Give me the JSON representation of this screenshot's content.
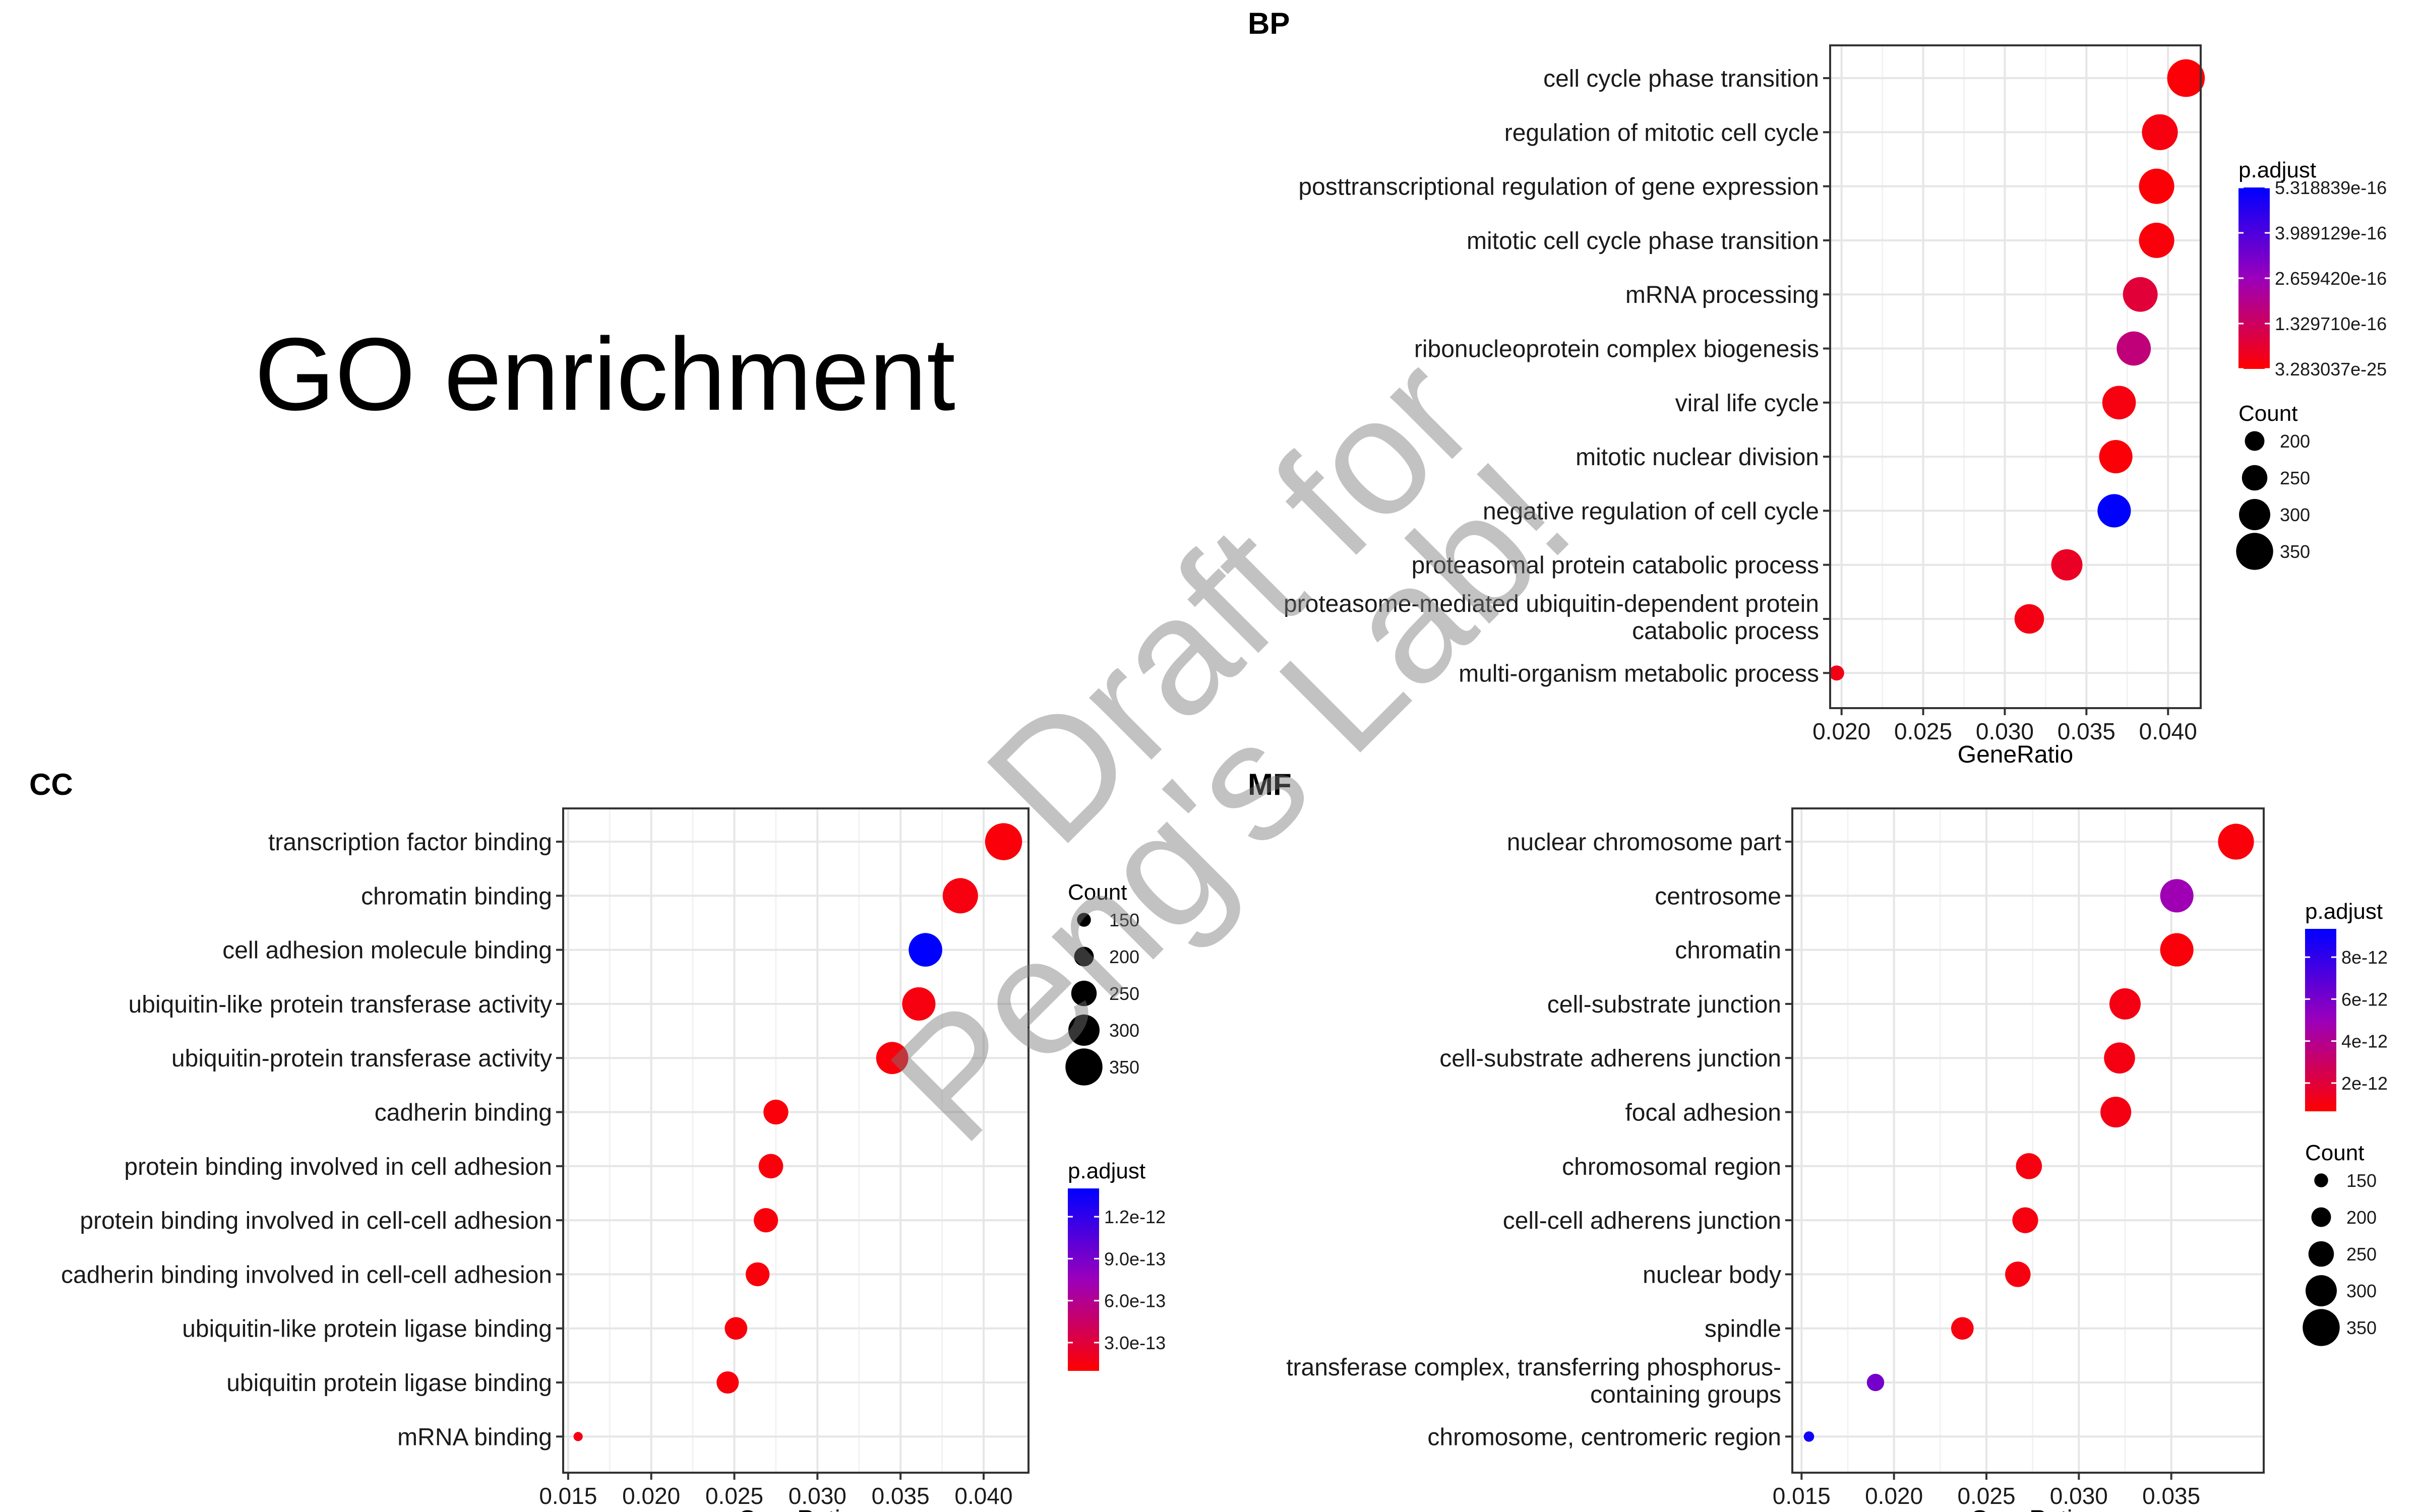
{
  "figure_title": "GO enrichment",
  "watermark": {
    "line1": "Draft for",
    "line2": "Peng's Lab!"
  },
  "colors": {
    "low": "#ff0000",
    "mid": "#9b00bb",
    "high": "#0000ff"
  },
  "chart_data": [
    {
      "type": "scatter",
      "panel": "BP",
      "xlabel": "GeneRatio",
      "ylabel": "",
      "xlim": [
        0.0193,
        0.042
      ],
      "xticks": [
        0.02,
        0.025,
        0.03,
        0.035,
        0.04
      ],
      "xtick_labels": [
        "0.020",
        "0.025",
        "0.030",
        "0.035",
        "0.040"
      ],
      "terms": [
        {
          "label": [
            "cell cycle phase transition"
          ],
          "x": 0.0411,
          "count": 355,
          "p_frac": 0.02
        },
        {
          "label": [
            "regulation of mitotic cell cycle"
          ],
          "x": 0.0395,
          "count": 340,
          "p_frac": 0.04
        },
        {
          "label": [
            "posttranscriptional regulation of gene expression"
          ],
          "x": 0.0393,
          "count": 335,
          "p_frac": 0.02
        },
        {
          "label": [
            "mitotic cell cycle phase transition"
          ],
          "x": 0.0393,
          "count": 335,
          "p_frac": 0.03
        },
        {
          "label": [
            "mRNA processing"
          ],
          "x": 0.0383,
          "count": 330,
          "p_frac": 0.15
        },
        {
          "label": [
            "ribonucleoprotein complex biogenesis"
          ],
          "x": 0.0379,
          "count": 325,
          "p_frac": 0.32
        },
        {
          "label": [
            "viral life cycle"
          ],
          "x": 0.037,
          "count": 320,
          "p_frac": 0.04
        },
        {
          "label": [
            "mitotic nuclear division"
          ],
          "x": 0.0368,
          "count": 318,
          "p_frac": 0.02
        },
        {
          "label": [
            "negative regulation of cell cycle"
          ],
          "x": 0.0367,
          "count": 318,
          "p_frac": 1.0
        },
        {
          "label": [
            "proteasomal protein catabolic process"
          ],
          "x": 0.0338,
          "count": 300,
          "p_frac": 0.1
        },
        {
          "label": [
            "proteasome-mediated ubiquitin-dependent protein",
            "catabolic process"
          ],
          "x": 0.0315,
          "count": 285,
          "p_frac": 0.05
        },
        {
          "label": [
            "multi-organism metabolic process"
          ],
          "x": 0.0197,
          "count": 160,
          "p_frac": 0.06
        }
      ],
      "color_legend": {
        "title": "p.adjust",
        "labels": [
          "5.318839e-16",
          "3.989129e-16",
          "2.659420e-16",
          "1.329710e-16",
          "3.283037e-25"
        ]
      },
      "size_legend": {
        "title": "Count",
        "labels": [
          "200",
          "250",
          "300",
          "350"
        ],
        "values": [
          200,
          250,
          300,
          350
        ]
      }
    },
    {
      "type": "scatter",
      "panel": "CC",
      "xlabel": "GeneRatio",
      "ylabel": "",
      "xlim": [
        0.0147,
        0.0427
      ],
      "xticks": [
        0.015,
        0.02,
        0.025,
        0.03,
        0.035,
        0.04
      ],
      "xtick_labels": [
        "0.015",
        "0.020",
        "0.025",
        "0.030",
        "0.035",
        "0.040"
      ],
      "terms": [
        {
          "label": [
            "transcription factor binding"
          ],
          "x": 0.0412,
          "count": 350,
          "p_frac": 0.03
        },
        {
          "label": [
            "chromatin binding"
          ],
          "x": 0.0386,
          "count": 335,
          "p_frac": 0.04
        },
        {
          "label": [
            "cell adhesion molecule binding"
          ],
          "x": 0.0365,
          "count": 320,
          "p_frac": 1.0
        },
        {
          "label": [
            "ubiquitin-like protein transferase activity"
          ],
          "x": 0.0361,
          "count": 318,
          "p_frac": 0.04
        },
        {
          "label": [
            "ubiquitin-protein transferase activity"
          ],
          "x": 0.0345,
          "count": 308,
          "p_frac": 0.03
        },
        {
          "label": [
            "cadherin binding"
          ],
          "x": 0.0275,
          "count": 245,
          "p_frac": 0.03
        },
        {
          "label": [
            "protein binding involved in cell adhesion"
          ],
          "x": 0.0272,
          "count": 242,
          "p_frac": 0.03
        },
        {
          "label": [
            "protein binding involved in cell-cell adhesion"
          ],
          "x": 0.0269,
          "count": 240,
          "p_frac": 0.03
        },
        {
          "label": [
            "cadherin binding involved in cell-cell adhesion"
          ],
          "x": 0.0264,
          "count": 236,
          "p_frac": 0.03
        },
        {
          "label": [
            "ubiquitin-like protein ligase binding"
          ],
          "x": 0.0251,
          "count": 225,
          "p_frac": 0.03
        },
        {
          "label": [
            "ubiquitin protein ligase binding"
          ],
          "x": 0.0246,
          "count": 222,
          "p_frac": 0.03
        },
        {
          "label": [
            "mRNA binding"
          ],
          "x": 0.0156,
          "count": 110,
          "p_frac": 0.05
        }
      ],
      "color_legend": {
        "title": "p.adjust",
        "labels": [
          "1.2e-12",
          "9.0e-13",
          "6.0e-13",
          "3.0e-13"
        ]
      },
      "size_legend": {
        "title": "Count",
        "labels": [
          "150",
          "200",
          "250",
          "300",
          "350"
        ],
        "values": [
          150,
          200,
          250,
          300,
          350
        ]
      }
    },
    {
      "type": "scatter",
      "panel": "MF",
      "xlabel": "GeneRatio",
      "ylabel": "",
      "xlim": [
        0.0145,
        0.04
      ],
      "xticks": [
        0.015,
        0.02,
        0.025,
        0.03,
        0.035
      ],
      "xtick_labels": [
        "0.015",
        "0.020",
        "0.025",
        "0.030",
        "0.035"
      ],
      "terms": [
        {
          "label": [
            "nuclear chromosome part"
          ],
          "x": 0.0385,
          "count": 340,
          "p_frac": 0.03
        },
        {
          "label": [
            "centrosome"
          ],
          "x": 0.0353,
          "count": 318,
          "p_frac": 0.48
        },
        {
          "label": [
            "chromatin"
          ],
          "x": 0.0353,
          "count": 318,
          "p_frac": 0.03
        },
        {
          "label": [
            "cell-substrate junction"
          ],
          "x": 0.0325,
          "count": 300,
          "p_frac": 0.05
        },
        {
          "label": [
            "cell-substrate adherens junction"
          ],
          "x": 0.0322,
          "count": 298,
          "p_frac": 0.05
        },
        {
          "label": [
            "focal adhesion"
          ],
          "x": 0.032,
          "count": 296,
          "p_frac": 0.05
        },
        {
          "label": [
            "chromosomal region"
          ],
          "x": 0.0273,
          "count": 255,
          "p_frac": 0.04
        },
        {
          "label": [
            "cell-cell adherens junction"
          ],
          "x": 0.0271,
          "count": 253,
          "p_frac": 0.04
        },
        {
          "label": [
            "nuclear body"
          ],
          "x": 0.0267,
          "count": 250,
          "p_frac": 0.04
        },
        {
          "label": [
            "spindle"
          ],
          "x": 0.0237,
          "count": 225,
          "p_frac": 0.04
        },
        {
          "label": [
            "transferase complex, transferring phosphorus-",
            "containing groups"
          ],
          "x": 0.019,
          "count": 180,
          "p_frac": 0.62
        },
        {
          "label": [
            "chromosome, centromeric region"
          ],
          "x": 0.0154,
          "count": 120,
          "p_frac": 0.95
        }
      ],
      "color_legend": {
        "title": "p.adjust",
        "labels": [
          "8e-12",
          "6e-12",
          "4e-12",
          "2e-12"
        ]
      },
      "size_legend": {
        "title": "Count",
        "labels": [
          "150",
          "200",
          "250",
          "300",
          "350"
        ],
        "values": [
          150,
          200,
          250,
          300,
          350
        ]
      }
    }
  ]
}
